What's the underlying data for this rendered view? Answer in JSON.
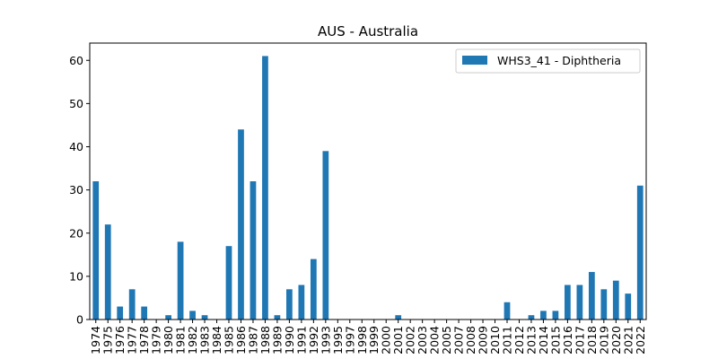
{
  "chart_data": {
    "type": "bar",
    "title": "AUS - Australia",
    "xlabel": "",
    "ylabel": "",
    "ylim": [
      0,
      64
    ],
    "yticks": [
      0,
      10,
      20,
      30,
      40,
      50,
      60
    ],
    "grid": false,
    "legend_position": "top-right",
    "bar_color": "#1f77b4",
    "categories": [
      "1974",
      "1975",
      "1976",
      "1977",
      "1978",
      "1979",
      "1980",
      "1981",
      "1982",
      "1983",
      "1984",
      "1985",
      "1986",
      "1987",
      "1988",
      "1989",
      "1990",
      "1991",
      "1992",
      "1993",
      "1995",
      "1997",
      "1998",
      "1999",
      "2000",
      "2001",
      "2002",
      "2003",
      "2004",
      "2005",
      "2007",
      "2008",
      "2009",
      "2010",
      "2011",
      "2012",
      "2013",
      "2014",
      "2015",
      "2016",
      "2017",
      "2018",
      "2019",
      "2020",
      "2021",
      "2022"
    ],
    "series": [
      {
        "name": "WHS3_41 - Diphtheria",
        "values": [
          32,
          22,
          3,
          7,
          3,
          0,
          1,
          18,
          2,
          1,
          0,
          17,
          44,
          32,
          61,
          1,
          7,
          8,
          14,
          39,
          0,
          0,
          0,
          0,
          0,
          1,
          0,
          0,
          0,
          0,
          0,
          0,
          0,
          0,
          4,
          0,
          1,
          2,
          2,
          8,
          8,
          11,
          7,
          9,
          6,
          31
        ]
      }
    ]
  }
}
